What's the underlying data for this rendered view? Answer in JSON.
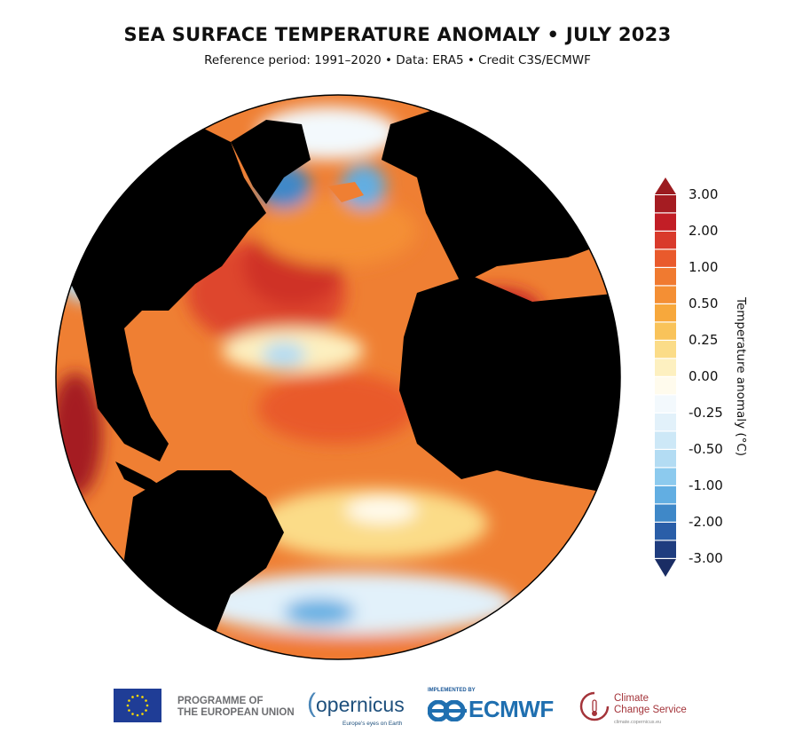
{
  "header": {
    "title": "SEA SURFACE TEMPERATURE ANOMALY • JULY 2023",
    "subtitle": "Reference period: 1991–2020 • Data: ERA5 • Credit C3S/ECMWF"
  },
  "map": {
    "projection": "orthographic",
    "center_region": "North Atlantic",
    "land_color": "#000000"
  },
  "colorbar": {
    "label": "Temperature anomaly (°C)",
    "ticks": [
      "3.00",
      "2.00",
      "1.00",
      "0.50",
      "0.25",
      "0.00",
      "-0.25",
      "-0.50",
      "-1.00",
      "-2.00",
      "-3.00"
    ],
    "extend": "both",
    "over_color": "#9b1b20",
    "under_color": "#1a2d64",
    "colors": [
      "#a51c22",
      "#c21e26",
      "#d93a2b",
      "#e95a2c",
      "#f07a30",
      "#f48f34",
      "#f7a83c",
      "#f9c35a",
      "#fbdc88",
      "#fdf0c0",
      "#fffbed",
      "#f3f9fd",
      "#e2f1fa",
      "#cde8f7",
      "#b3dcf3",
      "#8ccaee",
      "#62aee2",
      "#3f88c8",
      "#2a5ea8",
      "#1f3d7f"
    ]
  },
  "footer": {
    "eu_text_line1": "PROGRAMME OF",
    "eu_text_line2": "THE EUROPEAN UNION",
    "copernicus": "opernicus",
    "copernicus_tagline": "Europe's eyes on Earth",
    "implemented_by": "IMPLEMENTED BY",
    "ecmwf": "ECMWF",
    "ccs_line1": "Climate",
    "ccs_line2": "Change Service",
    "ccs_url": "climate.copernicus.eu"
  }
}
